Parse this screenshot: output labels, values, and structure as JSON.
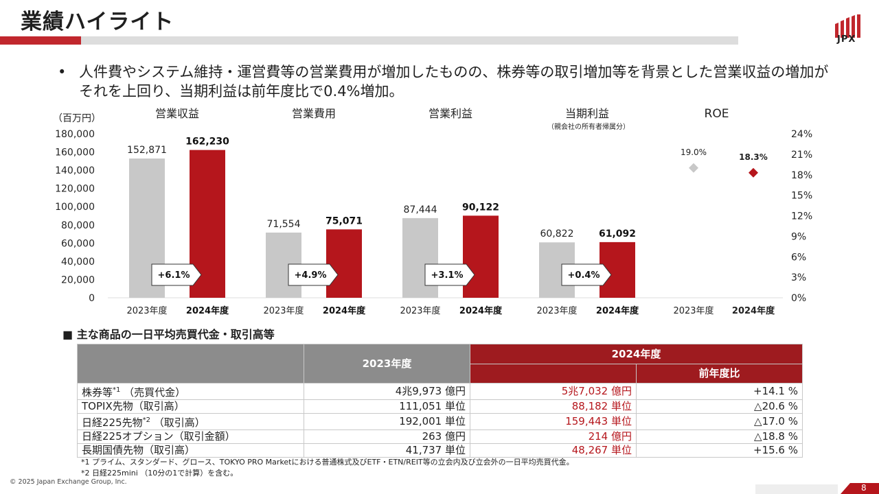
{
  "header": {
    "title": "業績ハイライト",
    "logo_text": "JPX",
    "colors": {
      "accent": "#c1272d",
      "bar_2024": "#b5161c",
      "bar_2023": "#c8c8c8"
    }
  },
  "bullet": {
    "dot": "•",
    "text": "人件費やシステム維持・運営費等の営業費用が増加したものの、株券等の取引増加等を背景とした営業収益の増加がそれを上回り、当期利益は前年度比で0.4%増加。"
  },
  "chart_data": {
    "type": "bar",
    "unit_label": "（百万円）",
    "y_ticks": [
      "180,000",
      "160,000",
      "140,000",
      "120,000",
      "100,000",
      "80,000",
      "60,000",
      "40,000",
      "20,000",
      "0"
    ],
    "ylim": [
      0,
      180000
    ],
    "groups": [
      {
        "title": "営業収益",
        "subtitle": "",
        "values": [
          152871,
          162230
        ],
        "labels": [
          "152,871",
          "162,230"
        ],
        "growth": "+6.1%"
      },
      {
        "title": "営業費用",
        "subtitle": "",
        "values": [
          71554,
          75071
        ],
        "labels": [
          "71,554",
          "75,071"
        ],
        "growth": "+4.9%"
      },
      {
        "title": "営業利益",
        "subtitle": "",
        "values": [
          87444,
          90122
        ],
        "labels": [
          "87,444",
          "90,122"
        ],
        "growth": "+3.1%"
      },
      {
        "title": "当期利益",
        "subtitle": "（親会社の所有者帰属分）",
        "values": [
          60822,
          61092
        ],
        "labels": [
          "60,822",
          "61,092"
        ],
        "growth": "+0.4%"
      }
    ],
    "x_labels": [
      "2023年度",
      "2024年度"
    ],
    "roe": {
      "title": "ROE",
      "y_ticks": [
        "24%",
        "21%",
        "18%",
        "15%",
        "12%",
        "9%",
        "6%",
        "3%",
        "0%"
      ],
      "ylim": [
        0,
        24
      ],
      "values": [
        19.0,
        18.3
      ],
      "labels": [
        "19.0%",
        "18.3%"
      ]
    }
  },
  "table": {
    "section_title": "■ 主な商品の一日平均売買代金・取引高等",
    "headers": {
      "y2023": "2023年度",
      "y2024": "2024年度",
      "yoy": "前年度比"
    },
    "rows": [
      {
        "name": "株券等",
        "sup": "*1",
        "suffix": "（売買代金）",
        "v2023": "4兆9,973 億円",
        "v2024": "5兆7,032 億円",
        "yoy": "+14.1 %"
      },
      {
        "name": "TOPIX先物（取引高）",
        "sup": "",
        "suffix": "",
        "v2023": "111,051 単位",
        "v2024": "88,182 単位",
        "yoy": "△20.6 %"
      },
      {
        "name": "日経225先物",
        "sup": "*2",
        "suffix": "（取引高）",
        "v2023": "192,001 単位",
        "v2024": "159,443 単位",
        "yoy": "△17.0 %"
      },
      {
        "name": "日経225オプション（取引金額）",
        "sup": "",
        "suffix": "",
        "v2023": "263 億円",
        "v2024": "214 億円",
        "yoy": "△18.8 %"
      },
      {
        "name": "長期国債先物（取引高）",
        "sup": "",
        "suffix": "",
        "v2023": "41,737 単位",
        "v2024": "48,267 単位",
        "yoy": "+15.6 %"
      }
    ]
  },
  "notes": [
    "*1 プライム、スタンダード、グロース、TOKYO PRO Marketにおける普通株式及びETF・ETN/REIT等の立会内及び立会外の一日平均売買代金。",
    "*2 日経225mini （10分の1で計算）を含む。"
  ],
  "footer": {
    "copyright": "© 2025 Japan Exchange Group, Inc.",
    "page": "8"
  }
}
